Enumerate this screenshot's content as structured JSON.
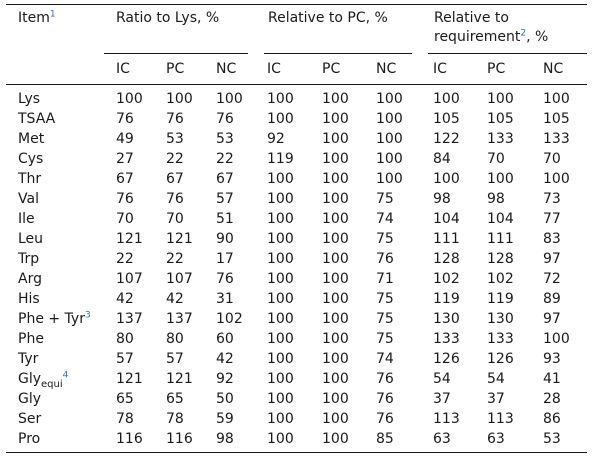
{
  "header": {
    "item": "Item",
    "item_note": "1",
    "group_lys": "Ratio to Lys, %",
    "group_pc": "Relative to PC, %",
    "group_req_line1": "Relative to",
    "group_req_line2": "requirement",
    "group_req_note": "2",
    "group_req_unit": ", %",
    "sub_cols": [
      "IC",
      "PC",
      "NC",
      "IC",
      "PC",
      "NC",
      "IC",
      "PC",
      "NC"
    ]
  },
  "rows": [
    {
      "item": "Lys",
      "values": [
        "100",
        "100",
        "100",
        "100",
        "100",
        "100",
        "100",
        "100",
        "100"
      ]
    },
    {
      "item": "TSAA",
      "values": [
        "76",
        "76",
        "76",
        "100",
        "100",
        "100",
        "105",
        "105",
        "105"
      ]
    },
    {
      "item": "Met",
      "values": [
        "49",
        "53",
        "53",
        "92",
        "100",
        "100",
        "122",
        "133",
        "133"
      ]
    },
    {
      "item": "Cys",
      "values": [
        "27",
        "22",
        "22",
        "119",
        "100",
        "100",
        "84",
        "70",
        "70"
      ]
    },
    {
      "item": "Thr",
      "values": [
        "67",
        "67",
        "67",
        "100",
        "100",
        "100",
        "100",
        "100",
        "100"
      ]
    },
    {
      "item": "Val",
      "values": [
        "76",
        "76",
        "57",
        "100",
        "100",
        "75",
        "98",
        "98",
        "73"
      ]
    },
    {
      "item": "Ile",
      "values": [
        "70",
        "70",
        "51",
        "100",
        "100",
        "74",
        "104",
        "104",
        "77"
      ]
    },
    {
      "item": "Leu",
      "values": [
        "121",
        "121",
        "90",
        "100",
        "100",
        "75",
        "111",
        "111",
        "83"
      ]
    },
    {
      "item": "Trp",
      "values": [
        "22",
        "22",
        "17",
        "100",
        "100",
        "76",
        "128",
        "128",
        "97"
      ]
    },
    {
      "item": "Arg",
      "values": [
        "107",
        "107",
        "76",
        "100",
        "100",
        "71",
        "102",
        "102",
        "72"
      ]
    },
    {
      "item": "His",
      "values": [
        "42",
        "42",
        "31",
        "100",
        "100",
        "75",
        "119",
        "119",
        "89"
      ]
    },
    {
      "item": "Phe + Tyr",
      "note": "3",
      "values": [
        "137",
        "137",
        "102",
        "100",
        "100",
        "75",
        "130",
        "130",
        "97"
      ]
    },
    {
      "item": "Phe",
      "values": [
        "80",
        "80",
        "60",
        "100",
        "100",
        "75",
        "133",
        "133",
        "100"
      ]
    },
    {
      "item": "Tyr",
      "values": [
        "57",
        "57",
        "42",
        "100",
        "100",
        "74",
        "126",
        "126",
        "93"
      ]
    },
    {
      "item": "Gly",
      "sub": "equi",
      "note": "4",
      "values": [
        "121",
        "121",
        "92",
        "100",
        "100",
        "76",
        "54",
        "54",
        "41"
      ]
    },
    {
      "item": "Gly",
      "values": [
        "65",
        "65",
        "50",
        "100",
        "100",
        "76",
        "37",
        "37",
        "28"
      ]
    },
    {
      "item": "Ser",
      "values": [
        "78",
        "78",
        "59",
        "100",
        "100",
        "76",
        "113",
        "113",
        "86"
      ]
    },
    {
      "item": "Pro",
      "values": [
        "116",
        "116",
        "98",
        "100",
        "100",
        "85",
        "63",
        "63",
        "53"
      ]
    }
  ]
}
